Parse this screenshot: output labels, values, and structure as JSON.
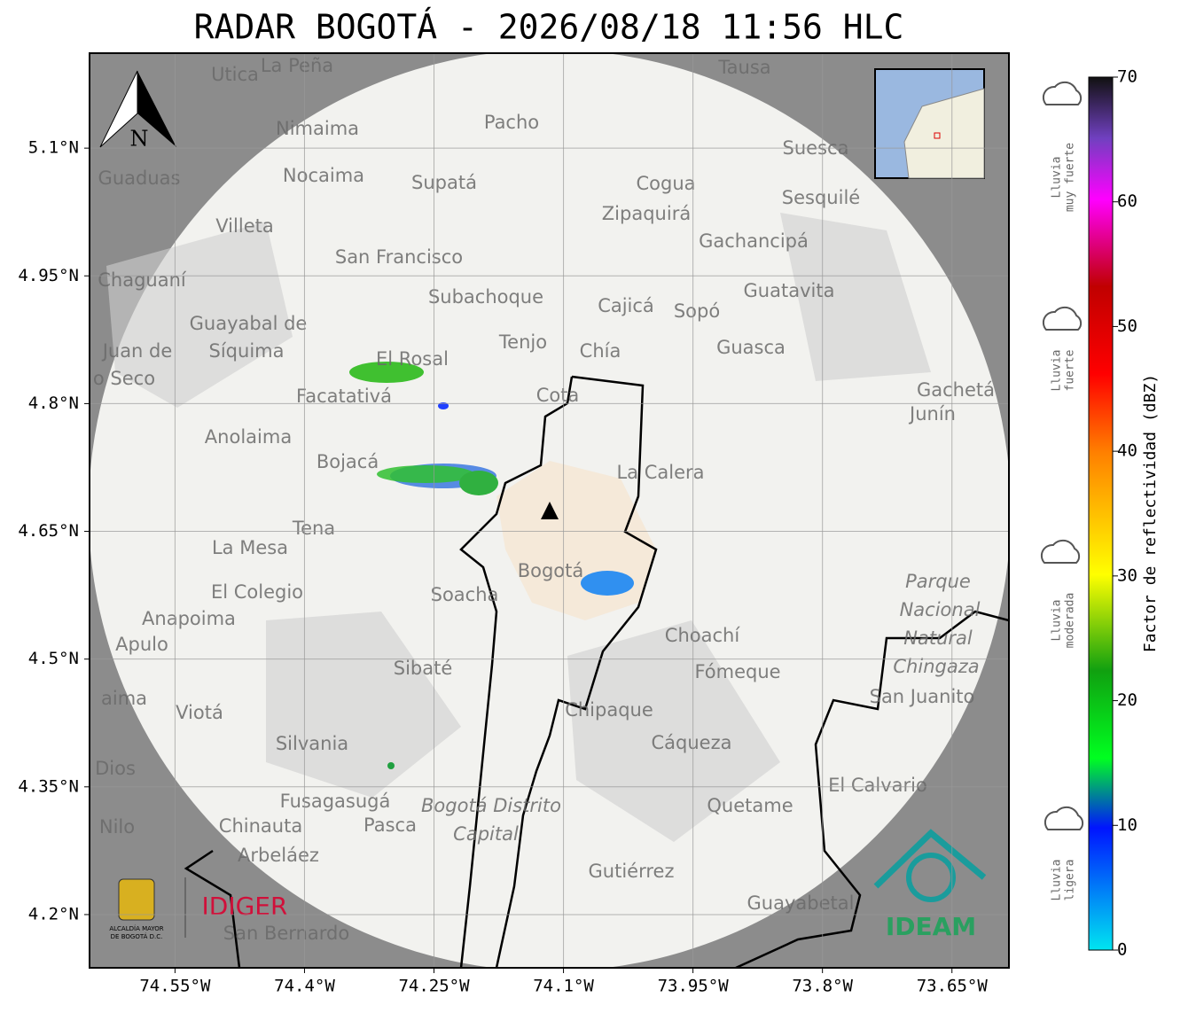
{
  "title": "RADAR BOGOTÁ - 2026/08/18 11:56 HLC",
  "map": {
    "xlim": [
      -74.649,
      -73.584
    ],
    "ylim": [
      4.1375,
      5.2115
    ],
    "xticks": [
      {
        "value": -74.55,
        "label": "74.55°W"
      },
      {
        "value": -74.4,
        "label": "74.4°W"
      },
      {
        "value": -74.25,
        "label": "74.25°W"
      },
      {
        "value": -74.1,
        "label": "74.1°W"
      },
      {
        "value": -73.95,
        "label": "73.95°W"
      },
      {
        "value": -73.8,
        "label": "73.8°W"
      },
      {
        "value": -73.65,
        "label": "73.65°W"
      }
    ],
    "yticks": [
      {
        "value": 4.2,
        "label": "4.2°N"
      },
      {
        "value": 4.35,
        "label": "4.35°N"
      },
      {
        "value": 4.5,
        "label": "4.5°N"
      },
      {
        "value": 4.65,
        "label": "4.65°N"
      },
      {
        "value": 4.8,
        "label": "4.8°N"
      },
      {
        "value": 4.95,
        "label": "4.95°N"
      },
      {
        "value": 5.1,
        "label": "5.1°N"
      }
    ],
    "grid": true,
    "north": "N",
    "places": [
      "La Peña",
      "Utica",
      "Tausa",
      "Nimaima",
      "Pacho",
      "Guaduas",
      "Nocaima",
      "Supatá",
      "Suesca",
      "Cogua",
      "Sesquilé",
      "Villeta",
      "Zipaquirá",
      "Gachancipá",
      "San Francisco",
      "Chaguaní",
      "Guatavita",
      "Subachoque",
      "Cajicá",
      "Sopó",
      "Guayabal de",
      "Síquima",
      "Tenjo",
      "Chía",
      "Guasca",
      "El Rosal",
      "Juan de",
      "o Seco",
      "Facatativá",
      "Cota",
      "Gachetá",
      "Junín",
      "Anolaima",
      "Bojacá",
      "La Calera",
      "Tena",
      "La Mesa",
      "El Colegio",
      "Soacha",
      "Bogotá",
      "Parque",
      "Nacional",
      "Natural",
      "Chingaza",
      "Anapoima",
      "Apulo",
      "Choachí",
      "Sibaté",
      "Fómeque",
      "aima",
      "Viotá",
      "Chipaque",
      "San Juanito",
      "Silvania",
      "Cáqueza",
      "Dios",
      "El Calvario",
      "Fusagasugá",
      "Bogotá Distrito",
      "Capital",
      "Quetame",
      "Nilo",
      "Chinauta",
      "Pasca",
      "Arbeláez",
      "Gutiérrez",
      "Guayabetal",
      "San Bernardo"
    ]
  },
  "colorbar": {
    "label": "Factor de reflectividad (dBZ)",
    "ylim": [
      0,
      70
    ],
    "yticks": [
      0,
      10,
      20,
      30,
      40,
      50,
      60,
      70
    ]
  },
  "rain_levels": [
    [
      "Lluvia",
      "muy fuerte"
    ],
    [
      "Lluvia",
      "fuerte"
    ],
    [
      "Lluvia",
      "moderada"
    ],
    [
      "Lluvia",
      "ligera"
    ]
  ],
  "logos": {
    "alcaldia": [
      "ALCALDÍA MAYOR",
      "DE BOGOTÁ D.C."
    ],
    "idiger": "IDIGER",
    "ideam": "IDEAM"
  }
}
